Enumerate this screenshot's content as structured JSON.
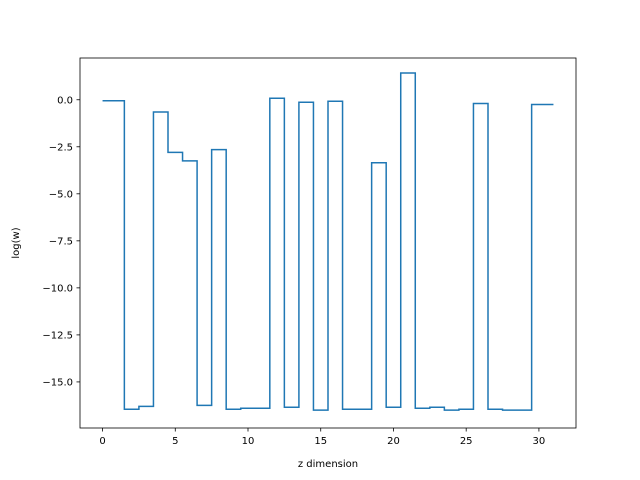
{
  "chart_data": {
    "type": "line",
    "drawstyle": "steps-mid",
    "title": "",
    "xlabel": "z dimension",
    "ylabel": "log(w)",
    "xlim": [
      -1.55,
      32.55
    ],
    "ylim": [
      -17.45,
      2.22
    ],
    "xticks": [
      0,
      5,
      10,
      15,
      20,
      25,
      30
    ],
    "xtick_labels": [
      "0",
      "5",
      "10",
      "15",
      "20",
      "25",
      "30"
    ],
    "yticks": [
      0.0,
      -2.5,
      -5.0,
      -7.5,
      -10.0,
      -12.5,
      -15.0
    ],
    "ytick_labels": [
      "0.0",
      "−2.5",
      "−5.0",
      "−7.5",
      "−10.0",
      "−12.5",
      "−15.0"
    ],
    "grid": false,
    "line_color": "#1f77b4",
    "series": [
      {
        "x": [
          0,
          1,
          2,
          3,
          4,
          5,
          6,
          7,
          8,
          9,
          10,
          11,
          12,
          13,
          14,
          15,
          16,
          17,
          18,
          19,
          20,
          21,
          22,
          23,
          24,
          25,
          26,
          27,
          28,
          29,
          30,
          31
        ],
        "values": [
          -0.05,
          -0.05,
          -16.45,
          -16.3,
          -0.65,
          -2.8,
          -3.25,
          -16.25,
          -2.65,
          -16.45,
          -16.4,
          -16.4,
          0.08,
          -16.35,
          -0.13,
          -16.5,
          -0.08,
          -16.45,
          -16.45,
          -3.35,
          -16.35,
          1.42,
          -16.4,
          -16.35,
          -16.5,
          -16.45,
          -0.2,
          -16.45,
          -16.5,
          -16.5,
          -0.25,
          -0.25
        ]
      }
    ]
  }
}
